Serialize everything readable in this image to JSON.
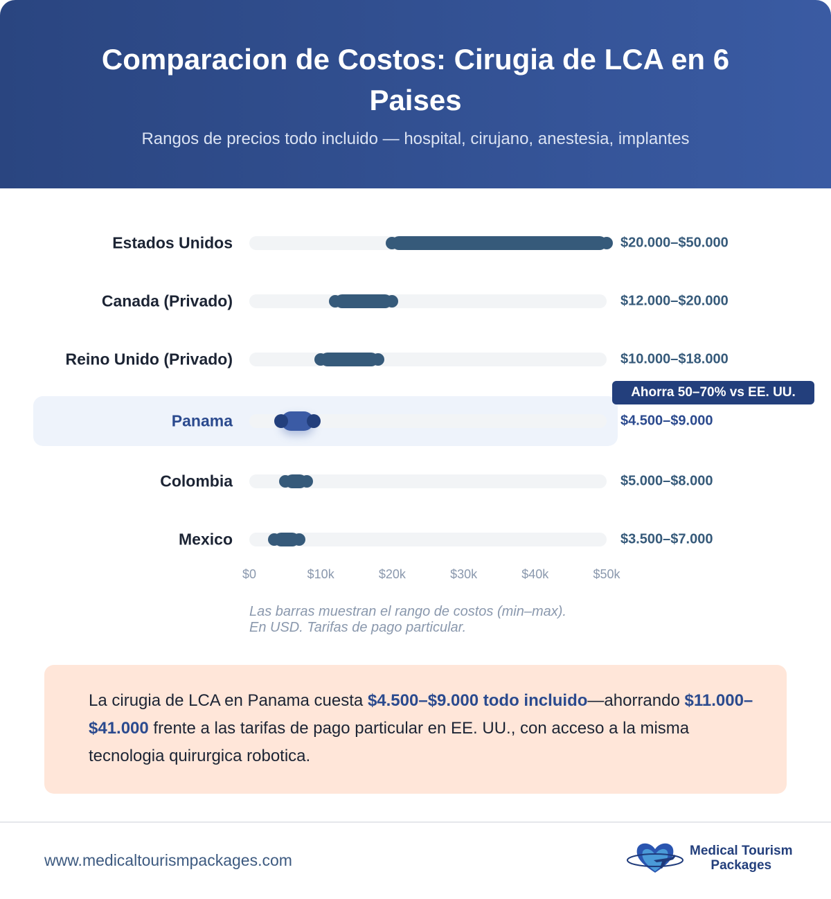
{
  "header": {
    "title": "Comparacion de Costos: Cirugia de LCA en 6 Paises",
    "subtitle": "Rangos de precios todo incluido — hospital, cirujano, anestesia, implantes"
  },
  "chart_data": {
    "type": "range-bar",
    "xlim": [
      0,
      50000
    ],
    "x_ticks": [
      "$0",
      "$10k",
      "$20k",
      "$30k",
      "$40k",
      "$50k"
    ],
    "x_tick_values": [
      0,
      10000,
      20000,
      30000,
      40000,
      50000
    ],
    "categories": [
      "Estados Unidos",
      "Canada (Privado)",
      "Reino Unido (Privado)",
      "Panama",
      "Colombia",
      "Mexico"
    ],
    "min": [
      20000,
      12000,
      10000,
      4500,
      5000,
      3500
    ],
    "max": [
      50000,
      20000,
      18000,
      9000,
      8000,
      7000
    ],
    "value_labels": [
      "$20.000–$50.000",
      "$12.000–$20.000",
      "$10.000–$18.000",
      "$4.500–$9.000",
      "$5.000–$8.000",
      "$3.500–$7.000"
    ],
    "highlight": "Panama",
    "annotation": "Ahorra 50–70% vs EE. UU.",
    "note_lines": [
      "Las barras muestran el rango de costos (min–max).",
      "En USD. Tarifas de pago particular."
    ],
    "colors": {
      "bar": "#365a7a",
      "highlight": "#3b5ba5",
      "track": "#f2f4f6"
    }
  },
  "callout": {
    "pre": "La cirugia de LCA en Panama cuesta ",
    "b1": "$4.500–$9.000 todo incluido",
    "mid": "—ahorrando ",
    "b2": "$11.000–$41.000",
    "post": " frente a las tarifas de pago particular en EE. UU., con acceso a la misma tecnologia quirurgica robotica."
  },
  "footer": {
    "url": "www.medicaltourismpackages.com",
    "logo_line1": "Medical Tourism",
    "logo_line2": "Packages"
  }
}
